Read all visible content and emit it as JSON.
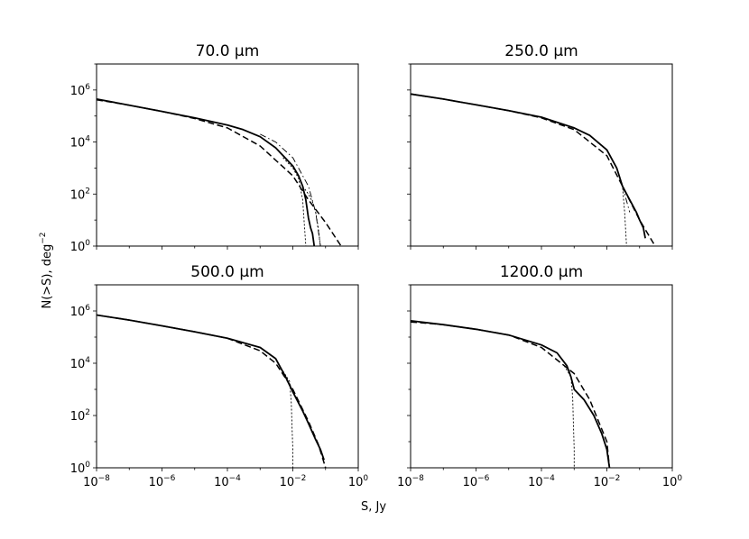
{
  "figure": {
    "xlabel": "S, Jy",
    "ylabel": "N(>S), deg",
    "ylabel_sup": "−2"
  },
  "chart_data": [
    {
      "type": "line",
      "title": "70.0 μm",
      "xscale": "log",
      "yscale": "log",
      "xlim": [
        1e-08,
        1
      ],
      "ylim": [
        1,
        10000000.0
      ],
      "xtick_labels": [],
      "ytick_labels": [
        "10^0",
        "10^2",
        "10^4",
        "10^6"
      ],
      "series": [
        {
          "style": "solid",
          "x": [
            1e-08,
            1e-07,
            1e-06,
            1e-05,
            0.0001,
            0.0003,
            0.001,
            0.003,
            0.01,
            0.015,
            0.02,
            0.025,
            0.03,
            0.035,
            0.04,
            0.045
          ],
          "y": [
            450000.0,
            260000.0,
            150000.0,
            85000.0,
            45000.0,
            30000.0,
            16000.0,
            6000.0,
            1200.0,
            500,
            200,
            60,
            12,
            5,
            3,
            1
          ]
        },
        {
          "style": "dashed",
          "x": [
            1e-08,
            1e-07,
            1e-06,
            1e-05,
            0.0001,
            0.001,
            0.01,
            0.03,
            0.1,
            0.3
          ],
          "y": [
            420000.0,
            260000.0,
            150000.0,
            80000.0,
            35000.0,
            7000.0,
            500,
            60,
            8,
            1
          ]
        },
        {
          "style": "dashdot",
          "x": [
            0.001,
            0.003,
            0.01,
            0.03,
            0.05,
            0.07
          ],
          "y": [
            20000.0,
            10000.0,
            2500.0,
            200,
            20,
            1
          ]
        },
        {
          "style": "dotted",
          "x": [
            0.005,
            0.01,
            0.015,
            0.02,
            0.022,
            0.025
          ],
          "y": [
            2500.0,
            1000.0,
            400,
            60,
            10,
            1
          ]
        },
        {
          "style": "dotted",
          "x": [
            0.02,
            0.03,
            0.04,
            0.05,
            0.06,
            0.07
          ],
          "y": [
            200,
            100,
            50,
            20,
            5,
            1
          ]
        }
      ]
    },
    {
      "type": "line",
      "title": "250.0 μm",
      "xscale": "log",
      "yscale": "log",
      "xlim": [
        1e-08,
        1
      ],
      "ylim": [
        1,
        10000000.0
      ],
      "xtick_labels": [],
      "ytick_labels": [],
      "series": [
        {
          "style": "solid",
          "x": [
            1e-08,
            1e-07,
            1e-06,
            1e-05,
            0.0001,
            0.001,
            0.003,
            0.01,
            0.02,
            0.03,
            0.05,
            0.08,
            0.1,
            0.13,
            0.15
          ],
          "y": [
            700000.0,
            450000.0,
            270000.0,
            160000.0,
            90000.0,
            35000.0,
            18000.0,
            5000.0,
            1000.0,
            200,
            60,
            20,
            10,
            5,
            2
          ]
        },
        {
          "style": "dashed",
          "x": [
            1e-08,
            1e-07,
            1e-06,
            1e-05,
            0.0001,
            0.001,
            0.01,
            0.03,
            0.1,
            0.3
          ],
          "y": [
            700000.0,
            450000.0,
            270000.0,
            160000.0,
            85000.0,
            30000.0,
            3000.0,
            200,
            10,
            1
          ]
        },
        {
          "style": "dashdot",
          "x": [
            0.001,
            0.003,
            0.01,
            0.02,
            0.03,
            0.05
          ],
          "y": [
            35000.0,
            18000.0,
            5000.0,
            1000.0,
            200,
            20
          ]
        },
        {
          "style": "dotted",
          "x": [
            0.005,
            0.01,
            0.02,
            0.03,
            0.035,
            0.04
          ],
          "y": [
            10000.0,
            5000.0,
            1000.0,
            200,
            20,
            1
          ]
        }
      ]
    },
    {
      "type": "line",
      "title": "500.0 μm",
      "xscale": "log",
      "yscale": "log",
      "xlim": [
        1e-08,
        1
      ],
      "ylim": [
        1,
        10000000.0
      ],
      "xtick_labels": [
        "10^−8",
        "10^−6",
        "10^−4",
        "10^−2",
        "10^0"
      ],
      "ytick_labels": [
        "10^0",
        "10^2",
        "10^4",
        "10^6"
      ],
      "series": [
        {
          "style": "solid",
          "x": [
            1e-08,
            1e-07,
            1e-06,
            1e-05,
            0.0001,
            0.001,
            0.003,
            0.006,
            0.01,
            0.015,
            0.02,
            0.03,
            0.05,
            0.07,
            0.09
          ],
          "y": [
            700000.0,
            450000.0,
            270000.0,
            160000.0,
            90000.0,
            40000.0,
            15000.0,
            3000.0,
            800,
            300,
            150,
            50,
            12,
            5,
            2
          ]
        },
        {
          "style": "dashed",
          "x": [
            1e-08,
            1e-07,
            1e-06,
            1e-05,
            0.0001,
            0.001,
            0.003,
            0.01,
            0.03,
            0.06,
            0.1
          ],
          "y": [
            700000.0,
            450000.0,
            270000.0,
            160000.0,
            90000.0,
            30000.0,
            10000.0,
            1000.0,
            60,
            8,
            1
          ]
        },
        {
          "style": "dotted",
          "x": [
            0.005,
            0.008,
            0.009,
            0.0095,
            0.01,
            0.01
          ],
          "y": [
            5000.0,
            2000.0,
            300,
            30,
            5,
            1
          ]
        }
      ]
    },
    {
      "type": "line",
      "title": "1200.0 μm",
      "xscale": "log",
      "yscale": "log",
      "xlim": [
        1e-08,
        1
      ],
      "ylim": [
        1,
        10000000.0
      ],
      "xtick_labels": [
        "10^−8",
        "10^−6",
        "10^−4",
        "10^−2",
        "10^0"
      ],
      "ytick_labels": [],
      "series": [
        {
          "style": "solid",
          "x": [
            1e-08,
            1e-07,
            1e-06,
            1e-05,
            0.0001,
            0.0003,
            0.0006,
            0.0008,
            0.001,
            0.002,
            0.004,
            0.007,
            0.01,
            0.012
          ],
          "y": [
            420000.0,
            300000.0,
            200000.0,
            120000.0,
            50000.0,
            25000.0,
            8000.0,
            3000.0,
            1000.0,
            400,
            100,
            20,
            5,
            1
          ]
        },
        {
          "style": "dashed",
          "x": [
            1e-08,
            1e-07,
            1e-06,
            1e-05,
            0.0001,
            0.001,
            0.003,
            0.01,
            0.012
          ],
          "y": [
            380000.0,
            300000.0,
            200000.0,
            120000.0,
            40000.0,
            4000.0,
            400,
            10,
            1
          ]
        },
        {
          "style": "dotted",
          "x": [
            0.0005,
            0.0008,
            0.0009,
            0.00095,
            0.001,
            0.001
          ],
          "y": [
            8000.0,
            3000.0,
            500,
            50,
            5,
            1
          ]
        }
      ]
    }
  ]
}
